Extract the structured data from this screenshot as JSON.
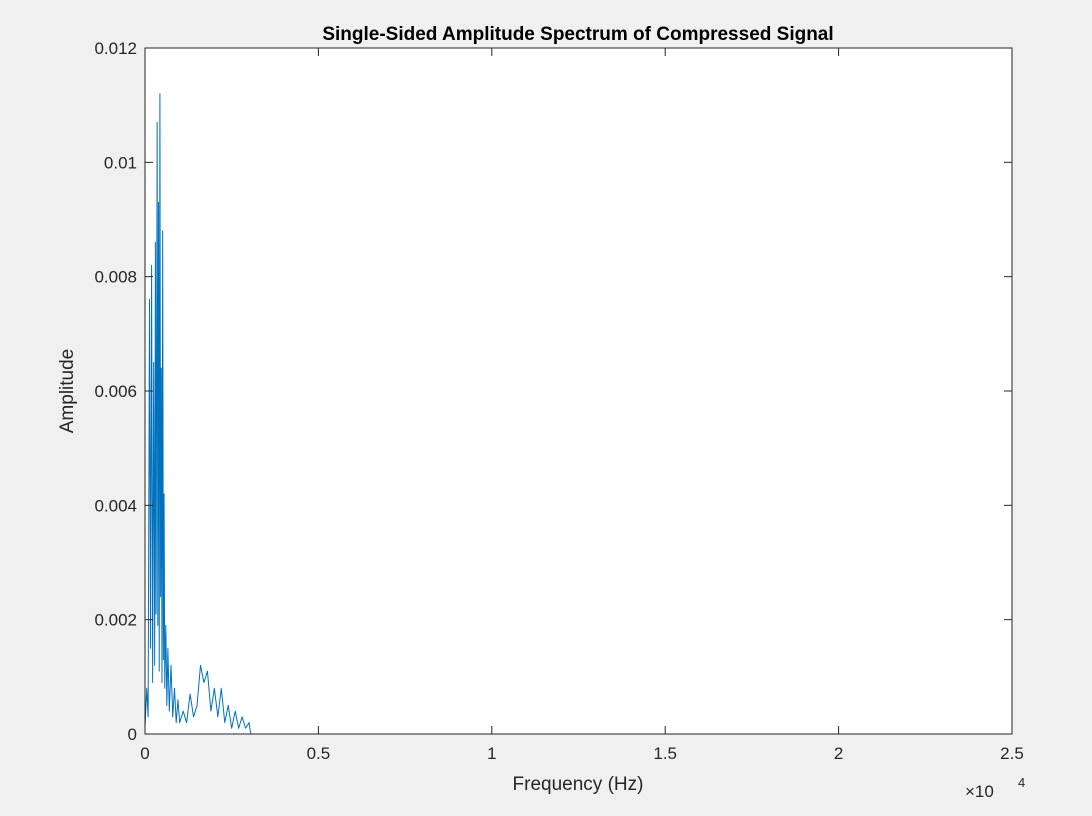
{
  "chart_data": {
    "type": "line",
    "title": "Single-Sided Amplitude Spectrum of Compressed Signal",
    "xlabel": "Frequency (Hz)",
    "ylabel": "Amplitude",
    "xlim": [
      0,
      25000
    ],
    "ylim": [
      0,
      0.012
    ],
    "x_ticks": [
      0,
      0.5,
      1,
      1.5,
      2,
      2.5
    ],
    "x_tick_labels": [
      "0",
      "0.5",
      "1",
      "1.5",
      "2",
      "2.5"
    ],
    "x_exponent_base": "×10",
    "x_exponent_power": "4",
    "y_ticks": [
      0,
      0.002,
      0.004,
      0.006,
      0.008,
      0.01,
      0.012
    ],
    "y_tick_labels": [
      "0",
      "0.002",
      "0.004",
      "0.006",
      "0.008",
      "0.01",
      "0.012"
    ],
    "grid": false,
    "series_color": "#0072bd",
    "series": [
      {
        "x": [
          0,
          50,
          90,
          130,
          160,
          190,
          220,
          250,
          280,
          300,
          320,
          350,
          370,
          390,
          410,
          430,
          450,
          470,
          490,
          510,
          530,
          550,
          570,
          600,
          630,
          660,
          700,
          750,
          800,
          850,
          900,
          950,
          1000,
          1100,
          1200,
          1300,
          1400,
          1500,
          1600,
          1700,
          1800,
          1900,
          2000,
          2100,
          2200,
          2300,
          2400,
          2500,
          2600,
          2700,
          2800,
          2900,
          3000,
          3050,
          5000,
          10000,
          15000,
          20000,
          24000
        ],
        "y": [
          0.0001,
          0.0008,
          0.0003,
          0.0076,
          0.0015,
          0.0082,
          0.0009,
          0.0065,
          0.0012,
          0.0086,
          0.0021,
          0.0107,
          0.0019,
          0.0093,
          0.0011,
          0.0112,
          0.0024,
          0.0064,
          0.0009,
          0.0088,
          0.0013,
          0.0042,
          0.0008,
          0.0019,
          0.0005,
          0.0015,
          0.0004,
          0.0012,
          0.0003,
          0.0008,
          0.0002,
          0.0006,
          0.0002,
          0.0004,
          0.0002,
          0.0007,
          0.0003,
          0.0005,
          0.0012,
          0.0009,
          0.0011,
          0.0004,
          0.0008,
          0.0003,
          0.0008,
          0.0002,
          0.0005,
          0.0001,
          0.0004,
          0.0001,
          0.0003,
          0.0001,
          0.0002,
          0.0,
          0.0,
          0.0,
          0.0,
          0.0,
          0.0
        ]
      }
    ]
  }
}
